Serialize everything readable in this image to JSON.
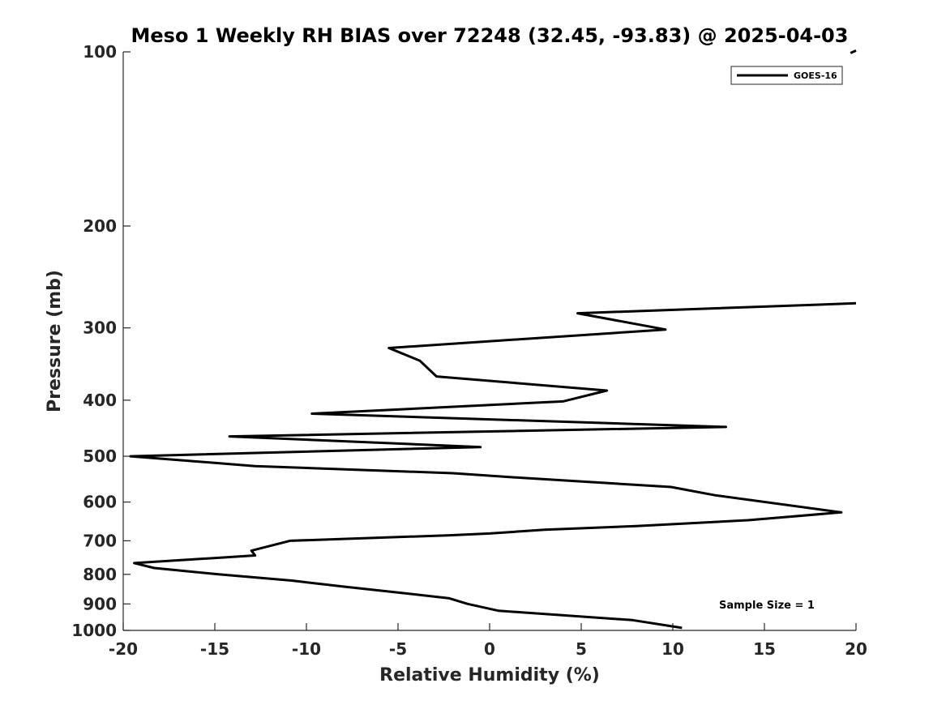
{
  "chart_data": {
    "type": "line",
    "title": "Meso 1 Weekly RH BIAS over 72248 (32.45, -93.83) @ 2025-04-03",
    "xlabel": "Relative Humidity (%)",
    "ylabel": "Pressure (mb)",
    "xlim": [
      -20,
      20
    ],
    "ylim": [
      1000,
      100
    ],
    "y_scale": "log",
    "y_inverted": true,
    "x_ticks": [
      "-20",
      "-15",
      "-10",
      "-5",
      "0",
      "5",
      "10",
      "15",
      "20"
    ],
    "y_ticks": [
      "100",
      "200",
      "300",
      "400",
      "500",
      "600",
      "700",
      "800",
      "900",
      "1000"
    ],
    "grid": false,
    "legend_position": "top-right",
    "annotation": "Sample Size = 1",
    "series": [
      {
        "name": "GOES-16",
        "color": "#000000",
        "x": [
          10.5,
          7.8,
          0.5,
          -1.2,
          -2.2,
          -5.0,
          -8.0,
          -10.8,
          -14.8,
          -18.3,
          -19.4,
          -12.8,
          -13.0,
          -10.9,
          -2.3,
          0.0,
          3.0,
          8.0,
          14.1,
          19.2,
          12.3,
          9.9,
          1.8,
          -2.0,
          -12.8,
          -19.6,
          -0.5,
          -14.2,
          12.9,
          -9.7,
          4.0,
          6.4,
          -2.9,
          -3.8,
          -5.5,
          9.6,
          4.8,
          20.0
        ],
        "y": [
          990,
          960,
          925,
          900,
          880,
          860,
          840,
          820,
          800,
          780,
          765,
          742,
          728,
          700,
          685,
          680,
          670,
          660,
          645,
          625,
          584,
          565,
          545,
          535,
          520,
          500,
          482,
          462,
          445,
          422,
          402,
          385,
          364,
          342,
          325,
          302,
          283,
          272
        ]
      },
      {
        "name": "",
        "color": "#000000",
        "x": [
          19.7,
          20.0
        ],
        "y": [
          100.5,
          99.5
        ]
      }
    ]
  }
}
